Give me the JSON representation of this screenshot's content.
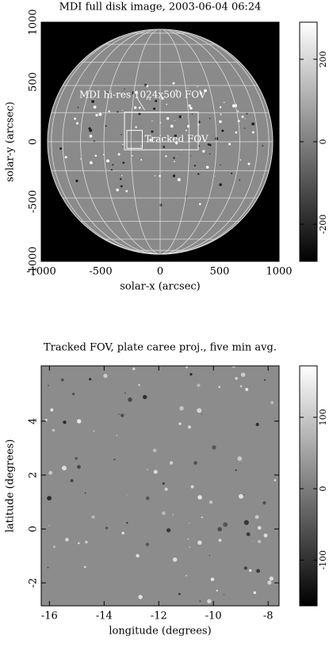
{
  "chart_data": [
    {
      "type": "image",
      "title": "MDI full disk image, 2003-06-04 06:24",
      "x_label": "solar-x (arcsec)",
      "y_label": "solar-y (arcsec)",
      "xlim": [
        -1000,
        1000
      ],
      "xticks": [
        -1000,
        -500,
        0,
        500,
        1000
      ],
      "ylim": [
        -1000,
        1000
      ],
      "yticks": [
        -1000,
        -500,
        0,
        500,
        1000
      ],
      "annotations": [
        "MDI hi-res 1024x500 FOV",
        "Tracked FOV"
      ],
      "colorbar": {
        "lim": [
          -290,
          290
        ],
        "ticks": [
          -200,
          0,
          200
        ]
      }
    },
    {
      "type": "image",
      "title": "Tracked FOV, plate caree proj., five min avg.",
      "x_label": "longitude (degrees)",
      "y_label": "latitude (degrees)",
      "xlim": [
        -16.3,
        -7.6
      ],
      "xticks": [
        -16,
        -14,
        -12,
        -10,
        -8
      ],
      "ylim": [
        -2.85,
        6.05
      ],
      "yticks": [
        -2,
        0,
        2,
        4
      ],
      "colorbar": {
        "lim": [
          -164,
          172
        ],
        "ticks": [
          -100,
          0,
          100
        ]
      }
    }
  ]
}
